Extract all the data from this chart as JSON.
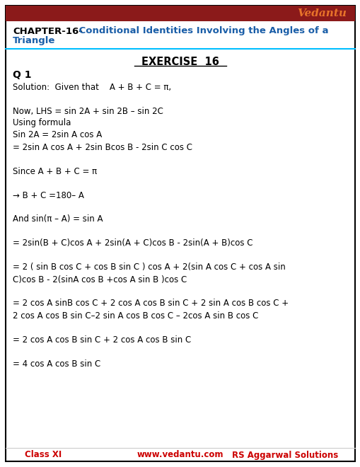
{
  "bg_color": "#ffffff",
  "border_color": "#000000",
  "top_bar_color": "#8B1A1A",
  "vedantu_color": "#E8732A",
  "chapter_black": "#000000",
  "chapter_blue": "#1a5ea8",
  "cyan_line_color": "#00BFFF",
  "footer_red": "#cc0000",
  "lines": [
    "Solution:  Given that    A + B + C = π,",
    "",
    "Now, LHS = sin 2A + sin 2B – sin 2C",
    "Using formula",
    "Sin 2A = 2sin A cos A",
    "= 2sin A cos A + 2sin Bcos B - 2sin C cos C",
    "",
    "Since A + B + C = π",
    "",
    "→ B + C =180– A",
    "",
    "And sin(π – A) = sin A",
    "",
    "= 2sin(B + C)cos A + 2sin(A + C)cos B - 2sin(A + B)cos C",
    "",
    "= 2 ( sin B cos C + cos B sin C ) cos A + 2(sin A cos C + cos A sin",
    "C)cos B - 2(sinA cos B +cos A sin B )cos C",
    "",
    "= 2 cos A sinB cos C + 2 cos A cos B sin C + 2 sin A cos B cos C +",
    "2 cos A cos B sin C–2 sin A cos B cos C – 2cos A sin B cos C",
    "",
    "= 2 cos A cos B sin C + 2 cos A cos B sin C",
    "",
    "= 4 cos A cos B sin C"
  ],
  "footer_left": "Class XI",
  "footer_center": "www.vedantu.com",
  "footer_right": "RS Aggarwal Solutions"
}
